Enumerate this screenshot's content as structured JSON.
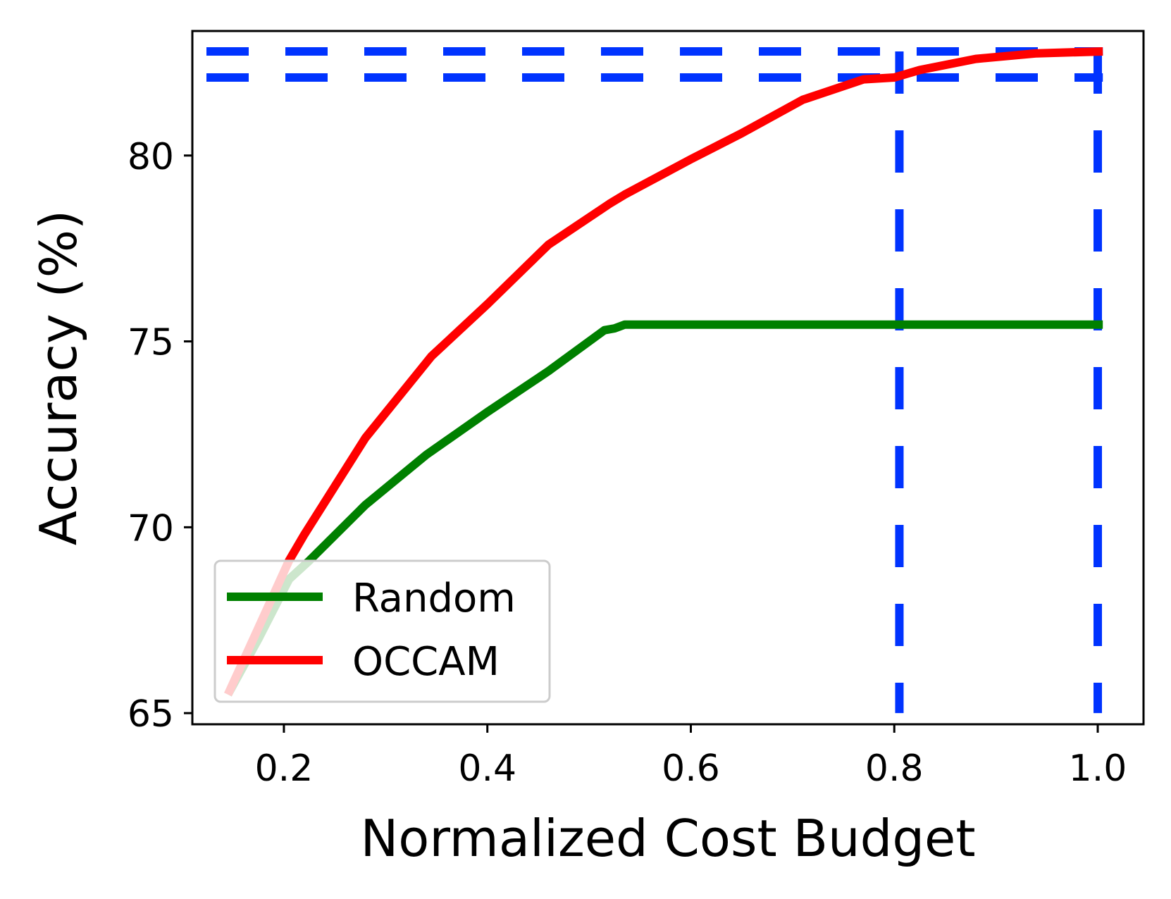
{
  "chart_data": {
    "type": "line",
    "title": "",
    "xlabel": "Normalized Cost Budget",
    "ylabel": "Accuracy (%)",
    "xlim": [
      0.11,
      1.045
    ],
    "ylim": [
      64.7,
      83.35
    ],
    "xticks": [
      0.2,
      0.4,
      0.6,
      0.8,
      1.0
    ],
    "xtick_labels": [
      "0.2",
      "0.4",
      "0.6",
      "0.8",
      "1.0"
    ],
    "yticks": [
      65,
      70,
      75,
      80
    ],
    "ytick_labels": [
      "65",
      "70",
      "75",
      "80"
    ],
    "grid": false,
    "legend_position": "lower-left",
    "series": [
      {
        "name": "Random",
        "color": "#008000",
        "x": [
          0.145,
          0.175,
          0.205,
          0.225,
          0.28,
          0.34,
          0.4,
          0.46,
          0.515,
          0.525,
          0.535,
          0.6,
          0.7,
          0.8,
          0.9,
          1.005
        ],
        "y": [
          65.5,
          67.0,
          68.6,
          69.1,
          70.6,
          71.95,
          73.1,
          74.2,
          75.3,
          75.35,
          75.45,
          75.45,
          75.45,
          75.45,
          75.45,
          75.45
        ]
      },
      {
        "name": "OCCAM",
        "color": "#ff0000",
        "x": [
          0.145,
          0.175,
          0.205,
          0.22,
          0.28,
          0.345,
          0.4,
          0.46,
          0.52,
          0.535,
          0.6,
          0.65,
          0.71,
          0.77,
          0.8,
          0.825,
          0.88,
          0.94,
          1.005
        ],
        "y": [
          65.5,
          67.3,
          69.1,
          69.8,
          72.4,
          74.6,
          76.0,
          77.6,
          78.7,
          78.95,
          79.9,
          80.6,
          81.5,
          82.05,
          82.1,
          82.3,
          82.6,
          82.75,
          82.8
        ]
      }
    ],
    "reference_lines": [
      {
        "orientation": "horizontal",
        "y": 82.8,
        "color": "#0033ff",
        "style": "dashed"
      },
      {
        "orientation": "horizontal",
        "y": 82.1,
        "color": "#0033ff",
        "style": "dashed"
      },
      {
        "orientation": "vertical",
        "x": 0.805,
        "color": "#0033ff",
        "style": "dashed"
      },
      {
        "orientation": "vertical",
        "x": 1.0,
        "color": "#0033ff",
        "style": "dashed"
      }
    ]
  }
}
